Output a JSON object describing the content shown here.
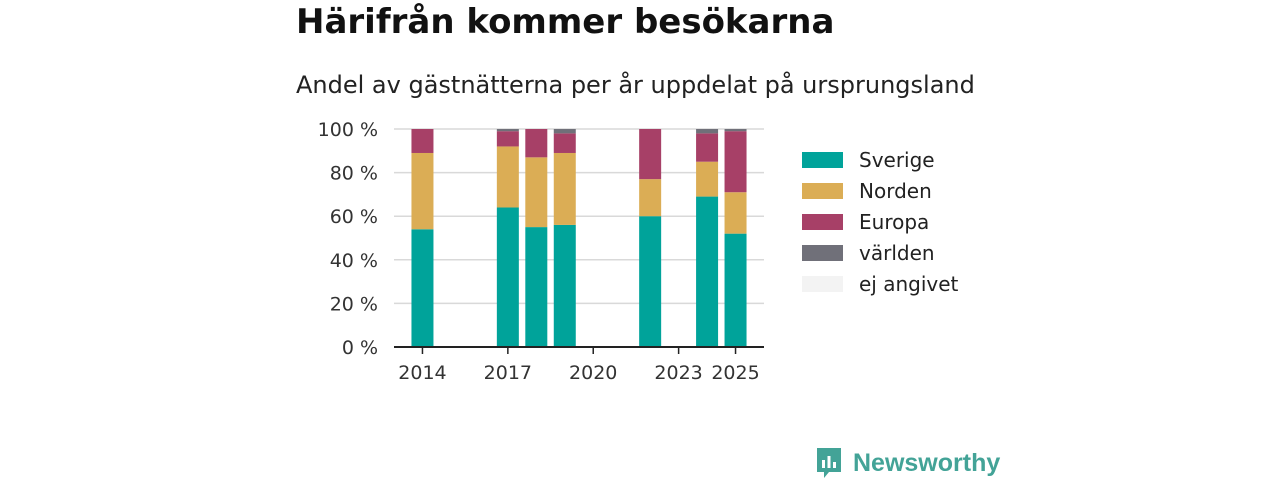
{
  "title": "Härifrån kommer besökarna",
  "subtitle": "Andel av gästnätterna per år uppdelat på ursprungsland",
  "brand": "Newsworthy",
  "chart_data": {
    "type": "bar",
    "stacked": true,
    "categories": [
      "2014",
      "2017",
      "2018",
      "2019",
      "2022",
      "2024",
      "2025"
    ],
    "x_values": [
      2014,
      2017,
      2018,
      2019,
      2022,
      2024,
      2025
    ],
    "x_ticks": [
      "2014",
      "2017",
      "2020",
      "2023",
      "2025"
    ],
    "x_tick_values": [
      2014,
      2017,
      2020,
      2023,
      2025
    ],
    "xlim": [
      2013,
      2026
    ],
    "y_ticks": [
      "0 %",
      "20 %",
      "40 %",
      "60 %",
      "80 %",
      "100 %"
    ],
    "y_tick_values": [
      0,
      20,
      40,
      60,
      80,
      100
    ],
    "ylim": [
      0,
      100
    ],
    "grid": true,
    "legend_position": "right",
    "series": [
      {
        "name": "Sverige",
        "color": "#00a39a",
        "values": [
          54,
          64,
          55,
          56,
          60,
          69,
          52
        ]
      },
      {
        "name": "Norden",
        "color": "#dbad55",
        "values": [
          35,
          28,
          32,
          33,
          17,
          16,
          19
        ]
      },
      {
        "name": "Europa",
        "color": "#a74067",
        "values": [
          11,
          7,
          13,
          9,
          23,
          13,
          28
        ]
      },
      {
        "name": "världen",
        "color": "#707079",
        "values": [
          0,
          1,
          0,
          2,
          0,
          2,
          1
        ]
      },
      {
        "name": "ej angivet",
        "color": "#f3f3f3",
        "values": [
          0,
          0,
          0,
          0,
          0,
          0,
          0
        ]
      }
    ]
  }
}
